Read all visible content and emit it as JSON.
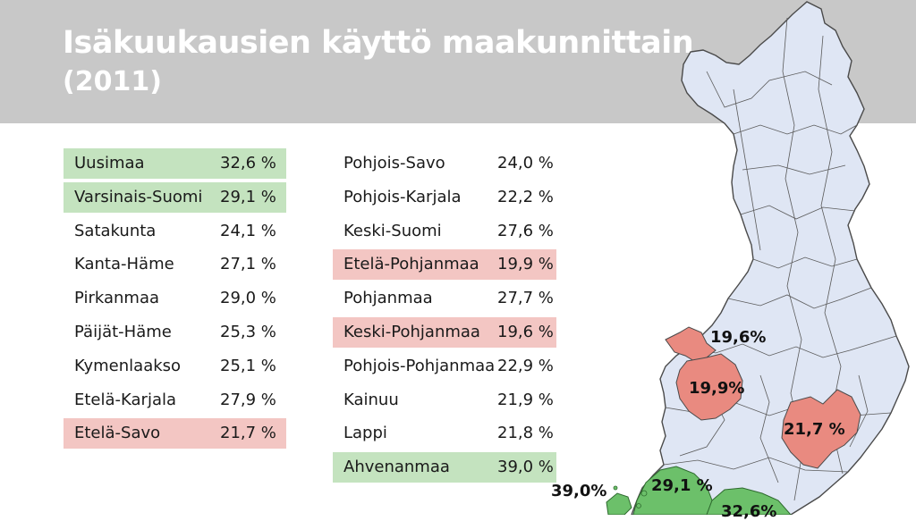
{
  "title": "Isäkuukausien käyttö maakunnittain",
  "subtitle": "(2011)",
  "colors": {
    "header_bg": "#c8c8c8",
    "high_highlight": "#c4e3bf",
    "low_highlight": "#f3c6c3",
    "map_fill": "#dfe6f4",
    "map_high": "#6cc06a",
    "map_low": "#e98a80"
  },
  "table": {
    "left": [
      {
        "region": "Uusimaa",
        "value": "32,6 %",
        "highlight": "high"
      },
      {
        "region": "Varsinais-Suomi",
        "value": "29,1 %",
        "highlight": "high"
      },
      {
        "region": "Satakunta",
        "value": "24,1 %",
        "highlight": "none"
      },
      {
        "region": "Kanta-Häme",
        "value": "27,1 %",
        "highlight": "none"
      },
      {
        "region": "Pirkanmaa",
        "value": "29,0 %",
        "highlight": "none"
      },
      {
        "region": "Päijät-Häme",
        "value": "25,3 %",
        "highlight": "none"
      },
      {
        "region": "Kymenlaakso",
        "value": "25,1 %",
        "highlight": "none"
      },
      {
        "region": "Etelä-Karjala",
        "value": "27,9 %",
        "highlight": "none"
      },
      {
        "region": "Etelä-Savo",
        "value": "21,7 %",
        "highlight": "low"
      }
    ],
    "right": [
      {
        "region": "Pohjois-Savo",
        "value": "24,0 %",
        "highlight": "none"
      },
      {
        "region": "Pohjois-Karjala",
        "value": "22,2 %",
        "highlight": "none"
      },
      {
        "region": "Keski-Suomi",
        "value": "27,6 %",
        "highlight": "none"
      },
      {
        "region": "Etelä-Pohjanmaa",
        "value": "19,9 %",
        "highlight": "low"
      },
      {
        "region": "Pohjanmaa",
        "value": "27,7 %",
        "highlight": "none"
      },
      {
        "region": "Keski-Pohjanmaa",
        "value": "19,6 %",
        "highlight": "low"
      },
      {
        "region": "Pohjois-Pohjanmaa",
        "value": "22,9 %",
        "highlight": "none"
      },
      {
        "region": "Kainuu",
        "value": "21,9 %",
        "highlight": "none"
      },
      {
        "region": "Lappi",
        "value": "21,8 %",
        "highlight": "none"
      },
      {
        "region": "Ahvenanmaa",
        "value": "39,0 %",
        "highlight": "high"
      }
    ]
  },
  "map_labels": {
    "keski_pohjanmaa": "19,6%",
    "etela_pohjanmaa": "19,9%",
    "etela_savo": "21,7 %",
    "ahvenanmaa": "39,0%",
    "varsinais_suomi": "29,1 %",
    "uusimaa": "32,6%"
  }
}
